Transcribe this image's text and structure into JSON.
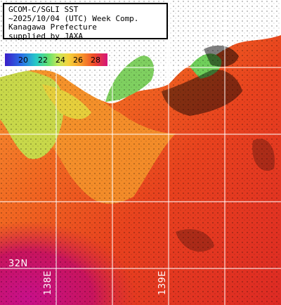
{
  "header": {
    "lines": [
      "GCOM-C/SGLI SST",
      "~2025/10/04 (UTC) Week Comp.",
      "Kanagawa Prefecture",
      "supplied by JAXA"
    ]
  },
  "legend": {
    "ticks": [
      "20",
      "22",
      "24",
      "26",
      "28"
    ],
    "colors": [
      "#3a1ec8",
      "#25c8c8",
      "#c8e85a",
      "#f7962a",
      "#d4147a"
    ]
  },
  "grid": {
    "lat_label": "32N",
    "lon_labels": [
      "138E",
      "139E"
    ]
  },
  "colors": {
    "land": "#ffffff",
    "cloud": "#000000",
    "cold_coast": "#9ae04a",
    "warm_sea": "#e8421e",
    "hot_sea": "#c8145e"
  }
}
